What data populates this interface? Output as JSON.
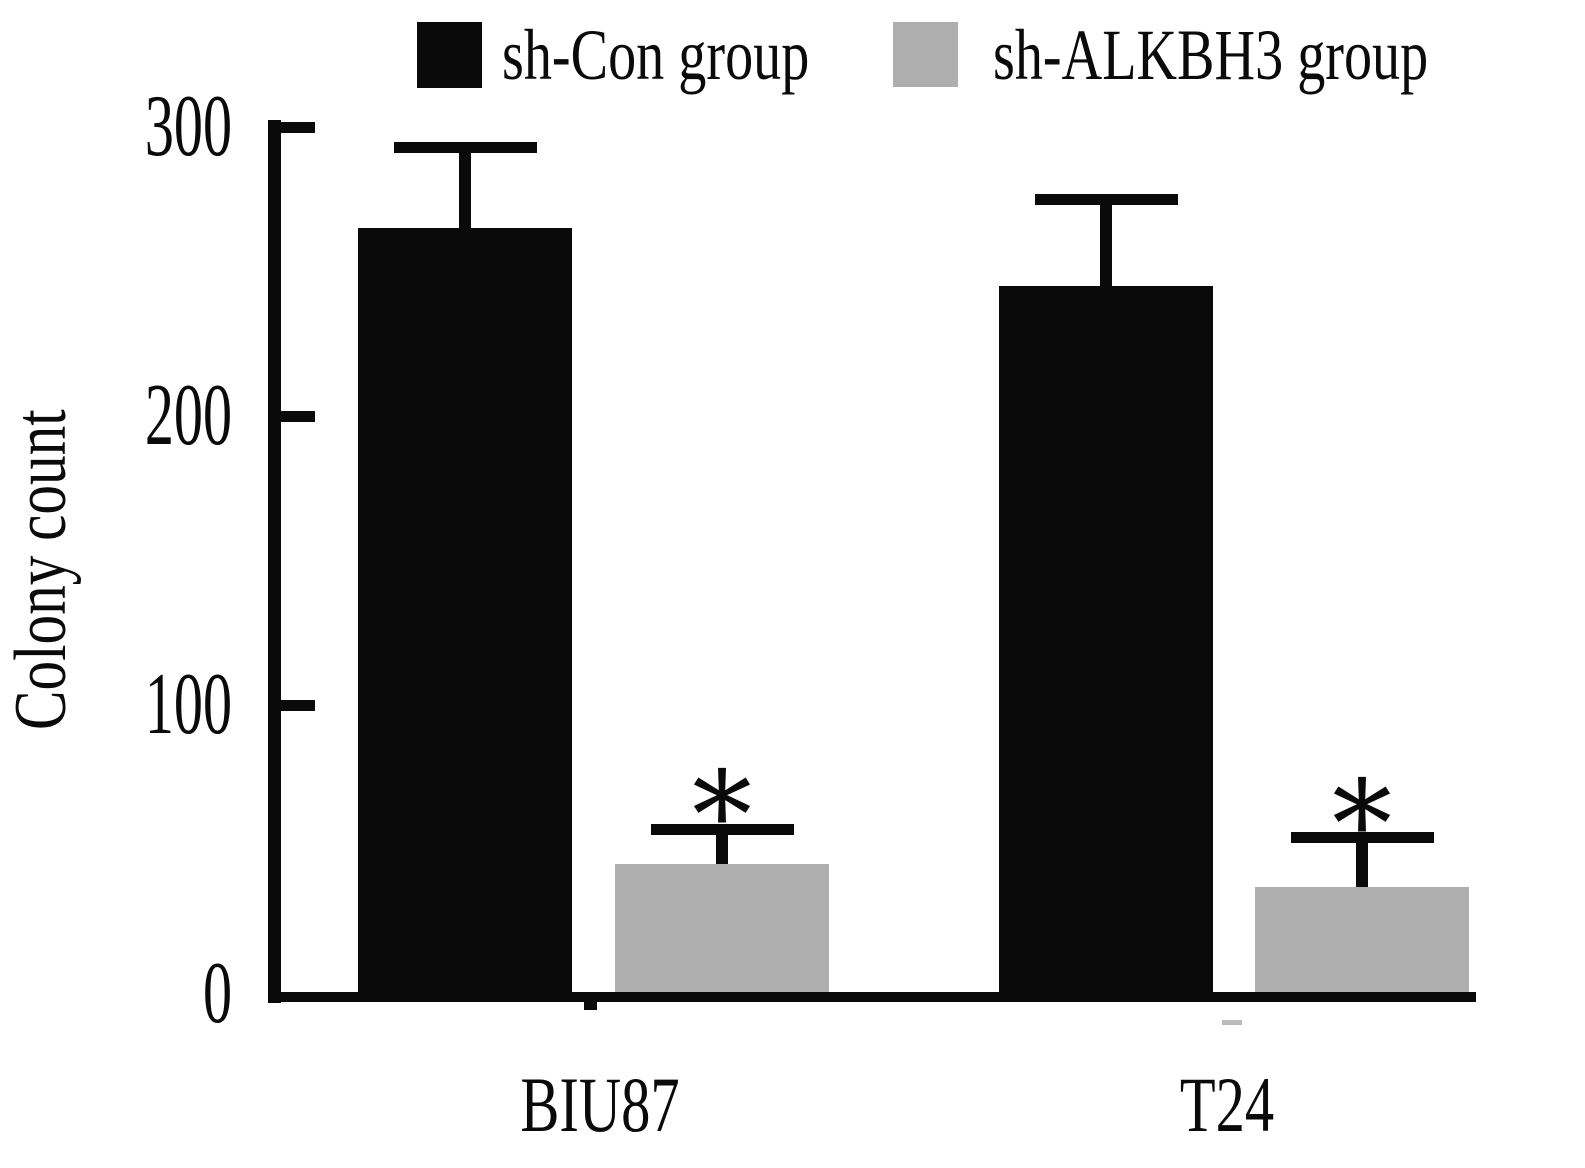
{
  "legend": {
    "items": [
      {
        "label": "sh-Con group"
      },
      {
        "label": "sh-ALKBH3 group"
      }
    ]
  },
  "colors": {
    "bar_black": "#0a0a0a",
    "bar_gray": "#aeaeae",
    "background": "#ffffff",
    "axis": "#0a0a0a"
  },
  "chart_data": {
    "type": "bar",
    "title": "",
    "xlabel": "",
    "ylabel": "Colony count",
    "categories": [
      "BIU87",
      "T24"
    ],
    "series": [
      {
        "name": "sh-Con group",
        "color": "#0a0a0a",
        "values": [
          265,
          245
        ],
        "errors_upper": [
          28,
          30
        ],
        "significance": [
          "",
          ""
        ]
      },
      {
        "name": "sh-ALKBH3 group",
        "color": "#aeaeae",
        "values": [
          45,
          37
        ],
        "errors_upper": [
          12,
          17
        ],
        "significance": [
          "*",
          "*"
        ]
      }
    ],
    "ylim": [
      0,
      300
    ],
    "yticks": [
      0,
      100,
      200,
      300
    ],
    "grid": false,
    "legend_position": "top",
    "error_bars": "upper-only"
  }
}
